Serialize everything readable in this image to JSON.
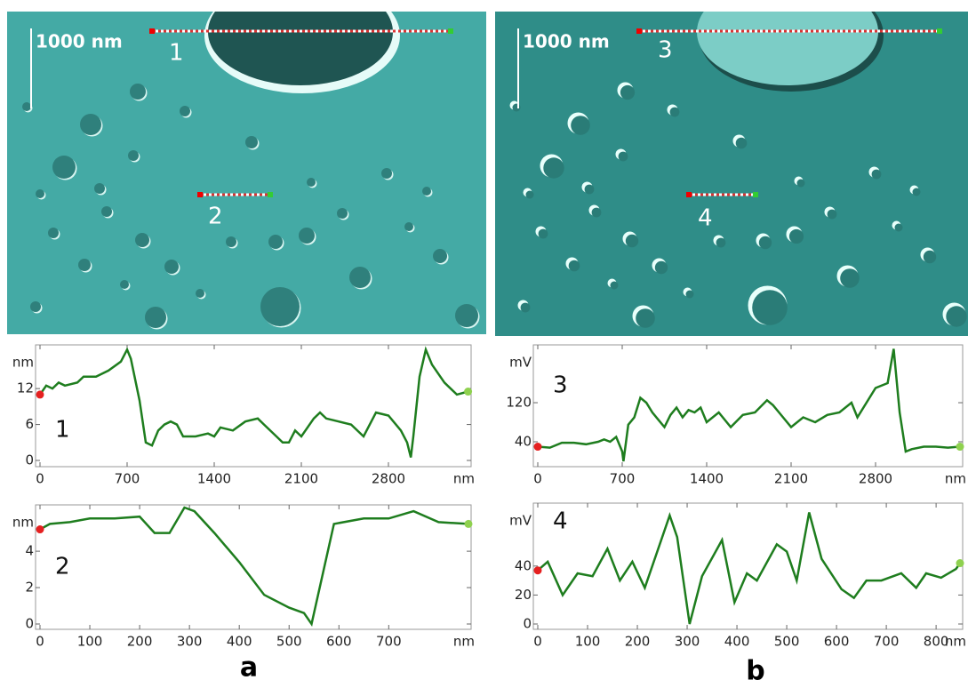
{
  "figure": {
    "images": [
      {
        "scale_label": "1000 nm",
        "profile_labels": [
          "1",
          "2"
        ]
      },
      {
        "scale_label": "1000 nm",
        "profile_labels": [
          "3",
          "4"
        ]
      }
    ],
    "panel_labels": [
      "a",
      "b"
    ]
  },
  "chart_data": [
    {
      "type": "line",
      "annotation": "1",
      "y_unit": "nm",
      "x_unit": "nm",
      "color": "#1e7d1e",
      "x": [
        0,
        50,
        100,
        150,
        200,
        300,
        350,
        450,
        550,
        650,
        700,
        730,
        800,
        850,
        900,
        950,
        1000,
        1050,
        1100,
        1150,
        1250,
        1350,
        1400,
        1450,
        1550,
        1650,
        1750,
        1800,
        1900,
        1950,
        2000,
        2050,
        2100,
        2200,
        2250,
        2300,
        2400,
        2500,
        2600,
        2700,
        2800,
        2900,
        2950,
        2980,
        3000,
        3050,
        3100,
        3150,
        3250,
        3350,
        3440
      ],
      "values": [
        11,
        12.5,
        12,
        13,
        12.5,
        13,
        14,
        14,
        15,
        16.5,
        18.5,
        17,
        10,
        3,
        2.5,
        5,
        6,
        6.5,
        6,
        4,
        4,
        4.5,
        4,
        5.5,
        5,
        6.5,
        7,
        6,
        4,
        3,
        3,
        5,
        4,
        7,
        8,
        7,
        6.5,
        6,
        4,
        8,
        7.5,
        5,
        3,
        0.5,
        4,
        14,
        18.5,
        16,
        13,
        11,
        11.5
      ],
      "xlim": [
        0,
        3443
      ],
      "ylim": [
        0,
        18.7
      ],
      "xticks": [
        0,
        700,
        1400,
        2100,
        2800
      ],
      "yticks": [
        0,
        6,
        12
      ]
    },
    {
      "type": "line",
      "annotation": "2",
      "y_unit": "nm",
      "x_unit": "nm",
      "color": "#1e7d1e",
      "x": [
        0,
        20,
        60,
        100,
        150,
        200,
        230,
        260,
        290,
        310,
        350,
        400,
        450,
        500,
        530,
        545,
        590,
        650,
        700,
        750,
        800,
        860
      ],
      "values": [
        5.2,
        5.5,
        5.6,
        5.8,
        5.8,
        5.9,
        5,
        5,
        6.4,
        6.2,
        5,
        3.4,
        1.6,
        0.9,
        0.6,
        0,
        5.5,
        5.8,
        5.8,
        6.2,
        5.6,
        5.5
      ],
      "xlim": [
        0,
        860
      ],
      "ylim": [
        0,
        6.35
      ],
      "xticks": [
        0,
        100,
        200,
        300,
        400,
        500,
        600,
        700
      ],
      "yticks": [
        0,
        2,
        4
      ]
    },
    {
      "type": "line",
      "annotation": "3",
      "y_unit": "mV",
      "x_unit": "nm",
      "color": "#1e7d1e",
      "x": [
        0,
        100,
        200,
        300,
        400,
        500,
        550,
        600,
        650,
        700,
        710,
        750,
        800,
        850,
        900,
        950,
        1000,
        1050,
        1100,
        1150,
        1200,
        1250,
        1300,
        1350,
        1400,
        1500,
        1600,
        1700,
        1800,
        1900,
        1950,
        2000,
        2100,
        2200,
        2300,
        2400,
        2500,
        2600,
        2650,
        2800,
        2900,
        2950,
        3000,
        3050,
        3100,
        3200,
        3300,
        3400,
        3500
      ],
      "values": [
        30,
        28,
        38,
        38,
        35,
        40,
        45,
        40,
        50,
        20,
        0,
        75,
        90,
        130,
        120,
        100,
        85,
        70,
        95,
        110,
        90,
        105,
        100,
        110,
        80,
        100,
        70,
        95,
        100,
        125,
        115,
        100,
        70,
        90,
        80,
        95,
        100,
        120,
        90,
        150,
        160,
        230,
        100,
        20,
        25,
        30,
        30,
        28,
        30
      ],
      "xlim": [
        0,
        3500
      ],
      "ylim": [
        0,
        231
      ],
      "xticks": [
        0,
        700,
        1400,
        2100,
        2800
      ],
      "yticks": [
        40,
        120
      ]
    },
    {
      "type": "line",
      "annotation": "4",
      "y_unit": "mV",
      "x_unit": "nm",
      "color": "#1e7d1e",
      "x": [
        0,
        20,
        50,
        80,
        110,
        140,
        165,
        190,
        215,
        265,
        280,
        305,
        330,
        370,
        395,
        420,
        440,
        480,
        500,
        520,
        545,
        570,
        610,
        635,
        660,
        690,
        730,
        760,
        780,
        810,
        840,
        848
      ],
      "values": [
        37,
        43,
        20,
        35,
        33,
        52,
        30,
        43,
        25,
        75,
        60,
        0,
        33,
        58,
        15,
        35,
        30,
        55,
        50,
        30,
        77,
        45,
        24,
        18,
        30,
        30,
        35,
        25,
        35,
        32,
        38,
        42
      ],
      "xlim": [
        0,
        848
      ],
      "ylim": [
        0,
        81
      ],
      "xticks": [
        0,
        100,
        200,
        300,
        400,
        500,
        600,
        700,
        800
      ],
      "yticks": [
        0,
        20,
        40
      ]
    }
  ]
}
